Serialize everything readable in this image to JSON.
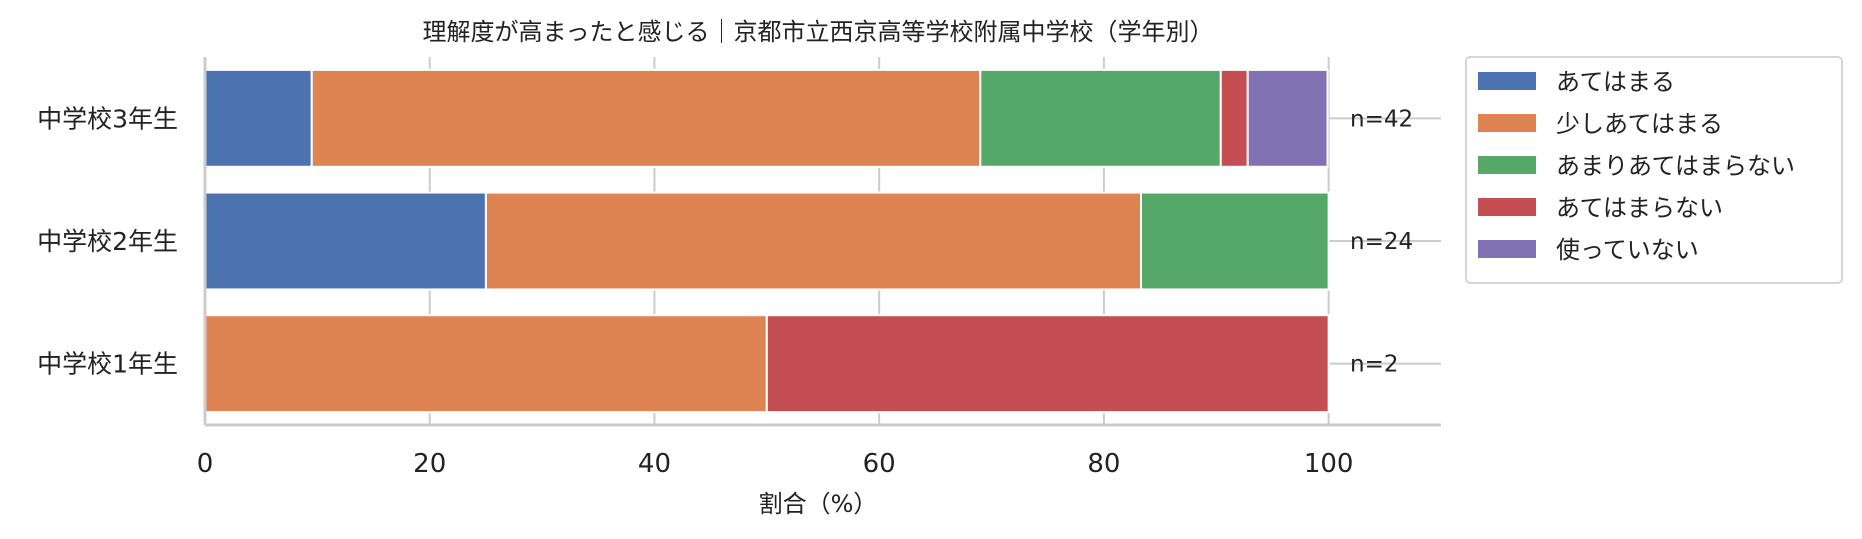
{
  "chart_data": {
    "type": "bar",
    "orientation": "horizontal",
    "stacked": true,
    "title": "理解度が高まったと感じる｜京都市立西京高等学校附属中学校（学年別）",
    "xlabel": "割合（%）",
    "ylabel": "",
    "xlim": [
      0,
      110
    ],
    "xticks": [
      0,
      20,
      40,
      60,
      80,
      100
    ],
    "grid": "x",
    "legend_position": "outside-top-right",
    "categories": [
      "中学校3年生",
      "中学校2年生",
      "中学校1年生"
    ],
    "n_labels": [
      "n=42",
      "n=24",
      "n=2"
    ],
    "series": [
      {
        "name": "あてはまる",
        "color": "#4c72b0",
        "values": [
          9.5,
          25.0,
          0.0
        ]
      },
      {
        "name": "少しあてはまる",
        "color": "#dd8452",
        "values": [
          59.5,
          58.3,
          50.0
        ]
      },
      {
        "name": "あまりあてはまらない",
        "color": "#55a868",
        "values": [
          21.4,
          16.7,
          0.0
        ]
      },
      {
        "name": "あてはまらない",
        "color": "#c44e52",
        "values": [
          2.4,
          0.0,
          50.0
        ]
      },
      {
        "name": "使っていない",
        "color": "#8172b3",
        "values": [
          7.1,
          0.0,
          0.0
        ]
      }
    ]
  }
}
